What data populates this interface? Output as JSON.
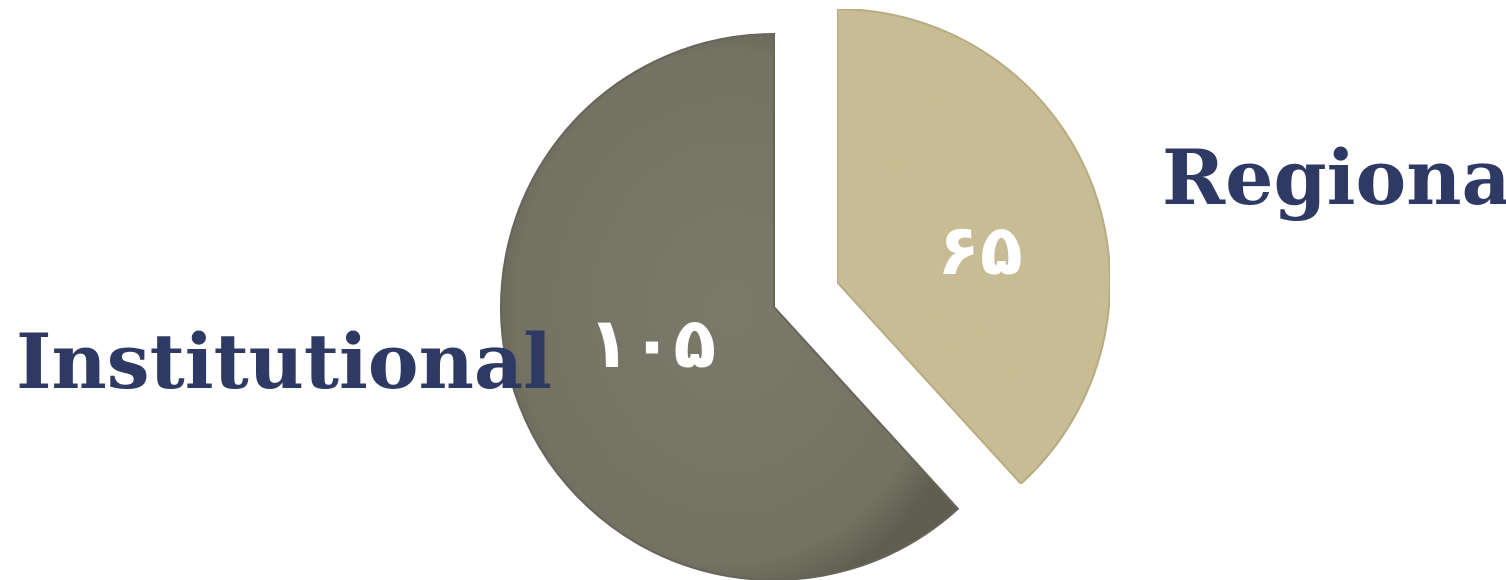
{
  "chart_data": {
    "type": "pie",
    "slices": [
      {
        "category": "Regional",
        "value": 65,
        "value_label": "۶۵",
        "color": "#c9bd96"
      },
      {
        "category": "Institutional",
        "value": 105,
        "value_label": "۱۰۵",
        "color": "#767565"
      }
    ],
    "title": "",
    "legend": "none",
    "exploded": true
  }
}
